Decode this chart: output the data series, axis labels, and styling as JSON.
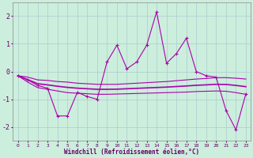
{
  "xlabel": "Windchill (Refroidissement éolien,°C)",
  "background_color": "#cceedd",
  "grid_color": "#aacccc",
  "line_color": "#aa00aa",
  "x_values": [
    0,
    1,
    2,
    3,
    4,
    5,
    6,
    7,
    8,
    9,
    10,
    11,
    12,
    13,
    14,
    15,
    16,
    17,
    18,
    19,
    20,
    21,
    22,
    23
  ],
  "y_main": [
    -0.15,
    -0.3,
    -0.5,
    -0.6,
    -1.6,
    -1.6,
    -0.75,
    -0.9,
    -1.0,
    0.35,
    0.95,
    0.1,
    0.35,
    0.95,
    2.15,
    0.3,
    0.65,
    1.2,
    0.0,
    -0.15,
    -0.2,
    -1.4,
    -2.1,
    -0.8
  ],
  "y_upper": [
    -0.15,
    -0.2,
    -0.3,
    -0.32,
    -0.36,
    -0.38,
    -0.42,
    -0.44,
    -0.46,
    -0.46,
    -0.46,
    -0.44,
    -0.42,
    -0.4,
    -0.38,
    -0.36,
    -0.33,
    -0.3,
    -0.27,
    -0.25,
    -0.22,
    -0.22,
    -0.24,
    -0.27
  ],
  "y_lower": [
    -0.15,
    -0.38,
    -0.58,
    -0.64,
    -0.7,
    -0.76,
    -0.78,
    -0.8,
    -0.82,
    -0.82,
    -0.81,
    -0.8,
    -0.79,
    -0.78,
    -0.77,
    -0.76,
    -0.75,
    -0.74,
    -0.72,
    -0.71,
    -0.7,
    -0.71,
    -0.76,
    -0.82
  ],
  "y_mean": [
    -0.15,
    -0.29,
    -0.44,
    -0.48,
    -0.53,
    -0.57,
    -0.6,
    -0.62,
    -0.64,
    -0.64,
    -0.635,
    -0.62,
    -0.605,
    -0.59,
    -0.575,
    -0.56,
    -0.54,
    -0.52,
    -0.495,
    -0.48,
    -0.46,
    -0.465,
    -0.5,
    -0.545
  ],
  "ylim": [
    -2.5,
    2.5
  ],
  "yticks": [
    -2,
    -1,
    0,
    1,
    2
  ]
}
